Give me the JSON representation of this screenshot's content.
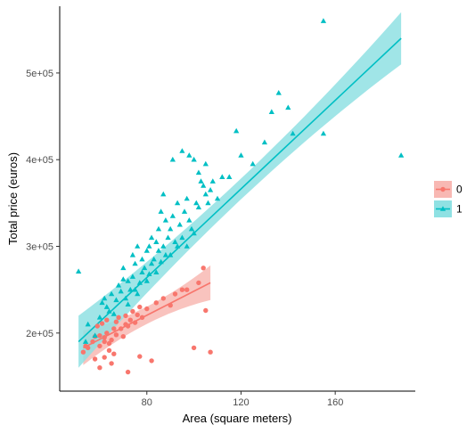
{
  "chart_data": {
    "type": "scatter",
    "title": "",
    "xlabel": "Area (square meters)",
    "ylabel": "Total price (euros)",
    "x_ticks": [
      80,
      120,
      160
    ],
    "y_ticks": [
      {
        "value": 200000,
        "label": "2e+05"
      },
      {
        "value": 300000,
        "label": "3e+05"
      },
      {
        "value": 400000,
        "label": "4e+05"
      },
      {
        "value": 500000,
        "label": "5e+05"
      }
    ],
    "xlim": [
      43,
      194
    ],
    "ylim": [
      133000,
      577000
    ],
    "grid": false,
    "legend_position": "right",
    "legend_title": "",
    "series": [
      {
        "name": "0",
        "color": "#f8766d",
        "band_color": "#f8b8b3",
        "marker": "circle",
        "points": [
          [
            53,
            178000
          ],
          [
            54,
            185000
          ],
          [
            55,
            183000
          ],
          [
            57,
            190000
          ],
          [
            58,
            170000
          ],
          [
            58,
            196000
          ],
          [
            59,
            208000
          ],
          [
            60,
            197000
          ],
          [
            60,
            185000
          ],
          [
            60,
            160000
          ],
          [
            61,
            211000
          ],
          [
            62,
            195000
          ],
          [
            62,
            190000
          ],
          [
            62,
            172000
          ],
          [
            63,
            200000
          ],
          [
            63,
            215000
          ],
          [
            64,
            180000
          ],
          [
            64,
            188000
          ],
          [
            65,
            165000
          ],
          [
            65,
            192000
          ],
          [
            66,
            205000
          ],
          [
            66,
            176000
          ],
          [
            67,
            213000
          ],
          [
            67,
            198000
          ],
          [
            68,
            218000
          ],
          [
            69,
            205000
          ],
          [
            70,
            196000
          ],
          [
            71,
            210000
          ],
          [
            71,
            220000
          ],
          [
            72,
            208000
          ],
          [
            72,
            155000
          ],
          [
            73,
            215000
          ],
          [
            74,
            225000
          ],
          [
            75,
            212000
          ],
          [
            76,
            221000
          ],
          [
            77,
            230000
          ],
          [
            77,
            173000
          ],
          [
            78,
            218000
          ],
          [
            80,
            228000
          ],
          [
            82,
            168000
          ],
          [
            84,
            235000
          ],
          [
            87,
            240000
          ],
          [
            90,
            232000
          ],
          [
            92,
            245000
          ],
          [
            95,
            250000
          ],
          [
            97,
            250000
          ],
          [
            100,
            183000
          ],
          [
            102,
            258000
          ],
          [
            104,
            275000
          ],
          [
            105,
            226000
          ],
          [
            107,
            178000
          ]
        ],
        "fit": {
          "x": [
            53,
            107
          ],
          "y": [
            183000,
            258000
          ],
          "band_halfwidth": [
            10000,
            20000
          ]
        }
      },
      {
        "name": "1",
        "color": "#00bfc4",
        "band_color": "#8fe1e3",
        "marker": "triangle",
        "points": [
          [
            51,
            271000
          ],
          [
            54,
            190000
          ],
          [
            55,
            210000
          ],
          [
            58,
            197000
          ],
          [
            60,
            218000
          ],
          [
            61,
            235000
          ],
          [
            62,
            240000
          ],
          [
            63,
            230000
          ],
          [
            64,
            225000
          ],
          [
            65,
            245000
          ],
          [
            66,
            222000
          ],
          [
            67,
            238000
          ],
          [
            68,
            255000
          ],
          [
            69,
            248000
          ],
          [
            70,
            275000
          ],
          [
            70,
            262000
          ],
          [
            71,
            240000
          ],
          [
            72,
            233000
          ],
          [
            72,
            260000
          ],
          [
            73,
            250000
          ],
          [
            74,
            265000
          ],
          [
            74,
            290000
          ],
          [
            75,
            250000
          ],
          [
            75,
            280000
          ],
          [
            76,
            245000
          ],
          [
            76,
            300000
          ],
          [
            77,
            258000
          ],
          [
            78,
            270000
          ],
          [
            78,
            285000
          ],
          [
            79,
            275000
          ],
          [
            80,
            260000
          ],
          [
            80,
            295000
          ],
          [
            81,
            300000
          ],
          [
            81,
            268000
          ],
          [
            82,
            280000
          ],
          [
            82,
            310000
          ],
          [
            83,
            285000
          ],
          [
            84,
            270000
          ],
          [
            84,
            305000
          ],
          [
            85,
            320000
          ],
          [
            85,
            295000
          ],
          [
            86,
            282000
          ],
          [
            86,
            340000
          ],
          [
            87,
            300000
          ],
          [
            87,
            360000
          ],
          [
            88,
            290000
          ],
          [
            88,
            330000
          ],
          [
            89,
            310000
          ],
          [
            90,
            320000
          ],
          [
            90,
            290000
          ],
          [
            91,
            335000
          ],
          [
            91,
            400000
          ],
          [
            92,
            305000
          ],
          [
            93,
            350000
          ],
          [
            93,
            300000
          ],
          [
            94,
            325000
          ],
          [
            95,
            410000
          ],
          [
            95,
            310000
          ],
          [
            96,
            340000
          ],
          [
            97,
            355000
          ],
          [
            97,
            300000
          ],
          [
            98,
            330000
          ],
          [
            98,
            405000
          ],
          [
            99,
            320000
          ],
          [
            100,
            315000
          ],
          [
            100,
            400000
          ],
          [
            101,
            350000
          ],
          [
            102,
            345000
          ],
          [
            102,
            385000
          ],
          [
            103,
            375000
          ],
          [
            104,
            370000
          ],
          [
            105,
            360000
          ],
          [
            105,
            395000
          ],
          [
            106,
            350000
          ],
          [
            107,
            365000
          ],
          [
            108,
            375000
          ],
          [
            110,
            355000
          ],
          [
            112,
            380000
          ],
          [
            115,
            380000
          ],
          [
            118,
            433000
          ],
          [
            120,
            405000
          ],
          [
            125,
            395000
          ],
          [
            130,
            420000
          ],
          [
            133,
            455000
          ],
          [
            136,
            477000
          ],
          [
            140,
            460000
          ],
          [
            142,
            430000
          ],
          [
            155,
            430000
          ],
          [
            155,
            560000
          ],
          [
            188,
            405000
          ]
        ],
        "fit": {
          "x": [
            51,
            188
          ],
          "y": [
            190000,
            540000
          ],
          "band_halfwidth": [
            12000,
            30000
          ]
        }
      }
    ]
  }
}
